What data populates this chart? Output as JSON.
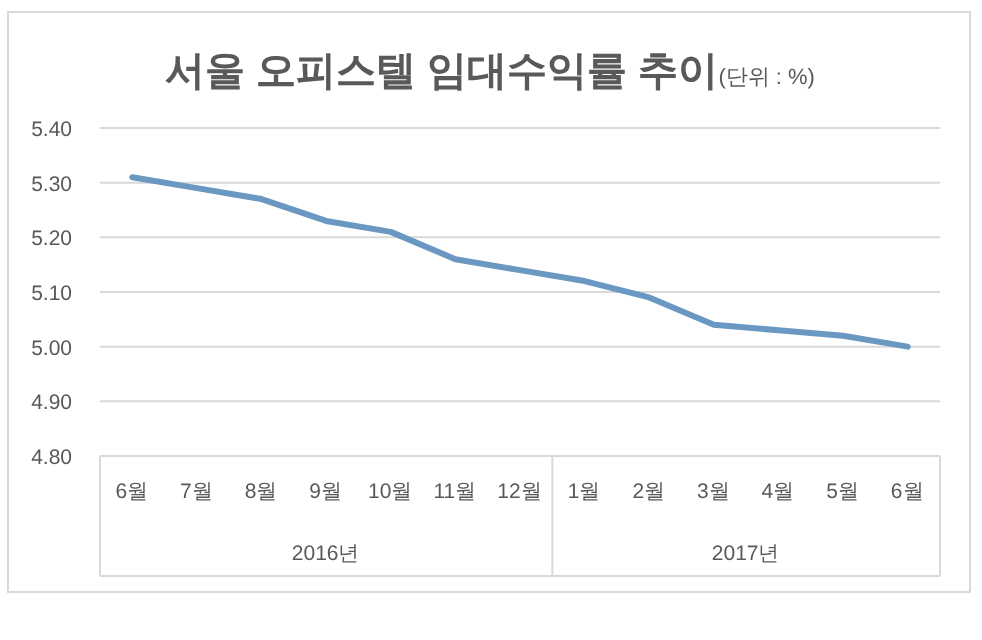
{
  "chart_data": {
    "type": "line",
    "title": "서울 오피스텔 임대수익률 추이(단위 : %)",
    "categories": [
      "6월",
      "7월",
      "8월",
      "9월",
      "10월",
      "11월",
      "12월",
      "1월",
      "2월",
      "3월",
      "4월",
      "5월",
      "6월"
    ],
    "series": [
      {
        "color": "#6a98c2",
        "values": [
          5.31,
          5.29,
          5.27,
          5.23,
          5.21,
          5.16,
          5.14,
          5.12,
          5.09,
          5.04,
          5.03,
          5.02,
          5.0
        ]
      }
    ],
    "annotations": [
      "2016년",
      "2017년"
    ],
    "ylim": [
      4.8,
      5.4
    ],
    "yticks": [
      {
        "value": 4.8,
        "label": "4.80"
      },
      {
        "value": 4.9,
        "label": "4.90"
      },
      {
        "value": 5.0,
        "label": "5.00"
      },
      {
        "value": 5.1,
        "label": "5.10"
      },
      {
        "value": 5.2,
        "label": "5.20"
      },
      {
        "value": 5.3,
        "label": "5.30"
      },
      {
        "value": 5.4,
        "label": "5.40"
      }
    ],
    "grid": "y",
    "marker": "none",
    "line_style": "solid"
  }
}
